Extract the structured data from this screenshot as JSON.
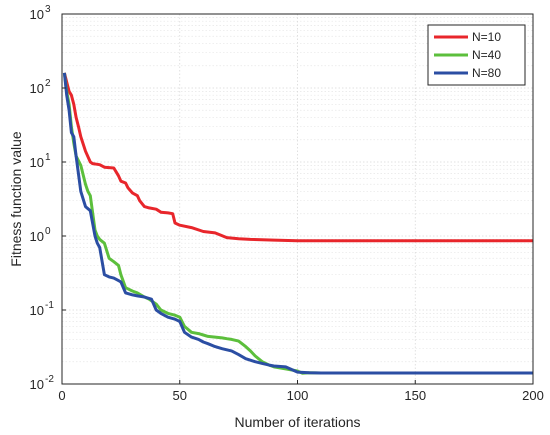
{
  "chart_data": {
    "type": "line",
    "title": "",
    "xlabel": "Number of iterations",
    "ylabel": "Fitness function value",
    "xlim": [
      0,
      200
    ],
    "ylim": [
      0.01,
      1000
    ],
    "yscale": "log",
    "grid": true,
    "minor_grid": true,
    "legend_position": "top-right",
    "x_ticks": [
      "0",
      "50",
      "100",
      "150",
      "200"
    ],
    "y_ticks": [
      {
        "base": "10",
        "exp": "-2"
      },
      {
        "base": "10",
        "exp": "-1"
      },
      {
        "base": "10",
        "exp": "0"
      },
      {
        "base": "10",
        "exp": "1"
      },
      {
        "base": "10",
        "exp": "2"
      },
      {
        "base": "10",
        "exp": "3"
      }
    ],
    "series": [
      {
        "name": "N=10",
        "color": "#e8262b",
        "x": [
          1,
          2,
          3,
          4,
          5,
          6,
          7,
          8,
          10,
          12,
          13,
          15,
          16,
          18,
          20,
          22,
          24,
          25,
          27,
          28,
          30,
          32,
          33,
          35,
          37,
          40,
          42,
          45,
          47,
          48,
          50,
          55,
          60,
          65,
          70,
          75,
          80,
          90,
          100,
          120,
          150,
          200
        ],
        "y": [
          160,
          120,
          90,
          80,
          60,
          40,
          30,
          22,
          14,
          10,
          9.5,
          9.3,
          9.2,
          8.5,
          8.4,
          8.3,
          6.5,
          5.5,
          5.2,
          4.5,
          3.8,
          3.5,
          3.0,
          2.5,
          2.4,
          2.3,
          2.1,
          2.05,
          2.0,
          1.5,
          1.4,
          1.3,
          1.15,
          1.1,
          0.95,
          0.92,
          0.9,
          0.88,
          0.86,
          0.86,
          0.86,
          0.86
        ]
      },
      {
        "name": "N=40",
        "color": "#5cbf3c",
        "x": [
          1,
          2,
          3,
          4,
          5,
          6,
          8,
          10,
          11,
          12,
          14,
          15,
          16,
          18,
          20,
          22,
          24,
          25,
          27,
          30,
          32,
          35,
          37,
          40,
          42,
          45,
          48,
          50,
          52,
          55,
          58,
          60,
          62,
          65,
          68,
          70,
          72,
          75,
          78,
          80,
          82,
          85,
          88,
          90,
          95,
          100,
          102,
          105,
          110,
          120,
          150,
          200
        ],
        "y": [
          160,
          90,
          60,
          30,
          18,
          12,
          9,
          5,
          4,
          3.5,
          1.2,
          1.0,
          0.9,
          0.8,
          0.5,
          0.45,
          0.4,
          0.3,
          0.2,
          0.18,
          0.17,
          0.15,
          0.14,
          0.12,
          0.1,
          0.09,
          0.085,
          0.08,
          0.06,
          0.05,
          0.048,
          0.046,
          0.044,
          0.043,
          0.042,
          0.041,
          0.04,
          0.038,
          0.032,
          0.028,
          0.024,
          0.02,
          0.018,
          0.017,
          0.016,
          0.015,
          0.014,
          0.0142,
          0.0141,
          0.0141,
          0.0141,
          0.0141
        ]
      },
      {
        "name": "N=80",
        "color": "#2b4ea3",
        "x": [
          1,
          2,
          3,
          4,
          5,
          6,
          8,
          10,
          12,
          14,
          15,
          16,
          18,
          20,
          22,
          24,
          25,
          27,
          30,
          32,
          35,
          38,
          40,
          42,
          45,
          48,
          50,
          52,
          55,
          58,
          60,
          62,
          65,
          68,
          70,
          72,
          75,
          78,
          80,
          82,
          85,
          88,
          90,
          95,
          100,
          105,
          110,
          120,
          150,
          200
        ],
        "y": [
          160,
          80,
          50,
          25,
          22,
          12,
          4,
          2.5,
          2.2,
          1.0,
          0.8,
          0.7,
          0.3,
          0.28,
          0.27,
          0.25,
          0.24,
          0.17,
          0.16,
          0.155,
          0.15,
          0.14,
          0.1,
          0.09,
          0.08,
          0.075,
          0.07,
          0.05,
          0.043,
          0.04,
          0.037,
          0.035,
          0.032,
          0.03,
          0.029,
          0.028,
          0.025,
          0.022,
          0.021,
          0.02,
          0.019,
          0.018,
          0.0175,
          0.017,
          0.0145,
          0.0142,
          0.0141,
          0.0141,
          0.0141,
          0.0141
        ]
      }
    ]
  }
}
